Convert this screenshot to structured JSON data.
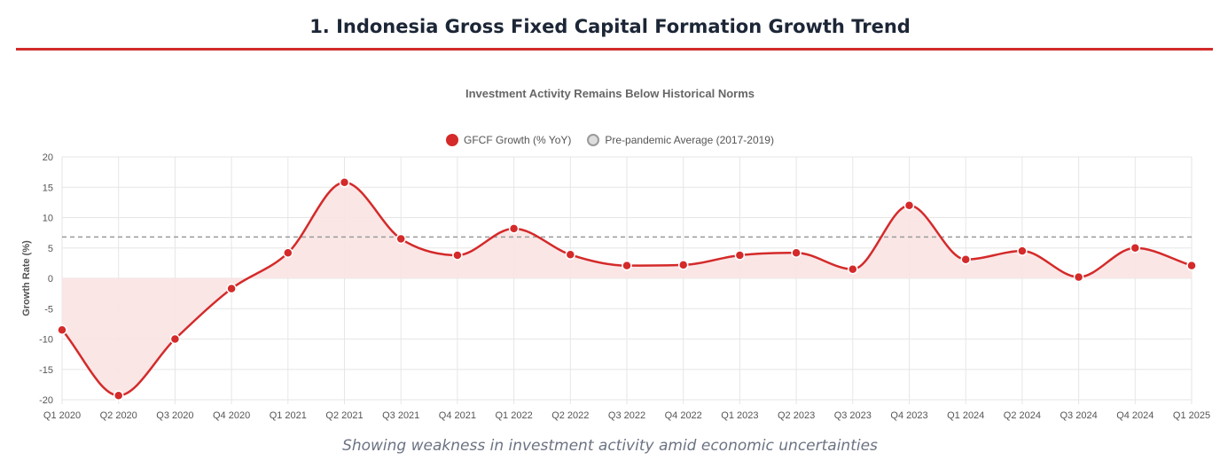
{
  "header": {
    "title": "1. Indonesia Gross Fixed Capital Formation Growth Trend",
    "accent_color": "#d22b2b"
  },
  "caption": "Showing weakness in investment activity amid economic uncertainties",
  "chart_data": {
    "type": "line",
    "title": "Investment Activity Remains Below Historical Norms",
    "xlabel": "",
    "ylabel": "Growth Rate (%)",
    "ylim": [
      -20,
      20
    ],
    "yticks": [
      20,
      15,
      10,
      5,
      0,
      -5,
      -10,
      -15,
      -20
    ],
    "grid": true,
    "legend_position": "top-center",
    "categories": [
      "Q1 2020",
      "Q2 2020",
      "Q3 2020",
      "Q4 2020",
      "Q1 2021",
      "Q2 2021",
      "Q3 2021",
      "Q4 2021",
      "Q1 2022",
      "Q2 2022",
      "Q3 2022",
      "Q4 2022",
      "Q1 2023",
      "Q2 2023",
      "Q3 2023",
      "Q4 2023",
      "Q1 2024",
      "Q2 2024",
      "Q3 2024",
      "Q4 2024",
      "Q1 2025"
    ],
    "series": [
      {
        "name": "GFCF Growth (% YoY)",
        "color": "#d42a2a",
        "fill": "#fbe3e3",
        "values": [
          -8.5,
          -19.3,
          -10.0,
          -1.7,
          4.2,
          15.8,
          6.5,
          3.8,
          8.2,
          3.9,
          2.1,
          2.2,
          3.8,
          4.2,
          1.5,
          12.0,
          3.1,
          4.5,
          0.2,
          5.0,
          2.1
        ]
      },
      {
        "name": "Pre-pandemic Average (2017-2019)",
        "color": "#9a9a9a",
        "fill": "#dddddd",
        "value": 6.8,
        "style": "dashed"
      }
    ]
  }
}
